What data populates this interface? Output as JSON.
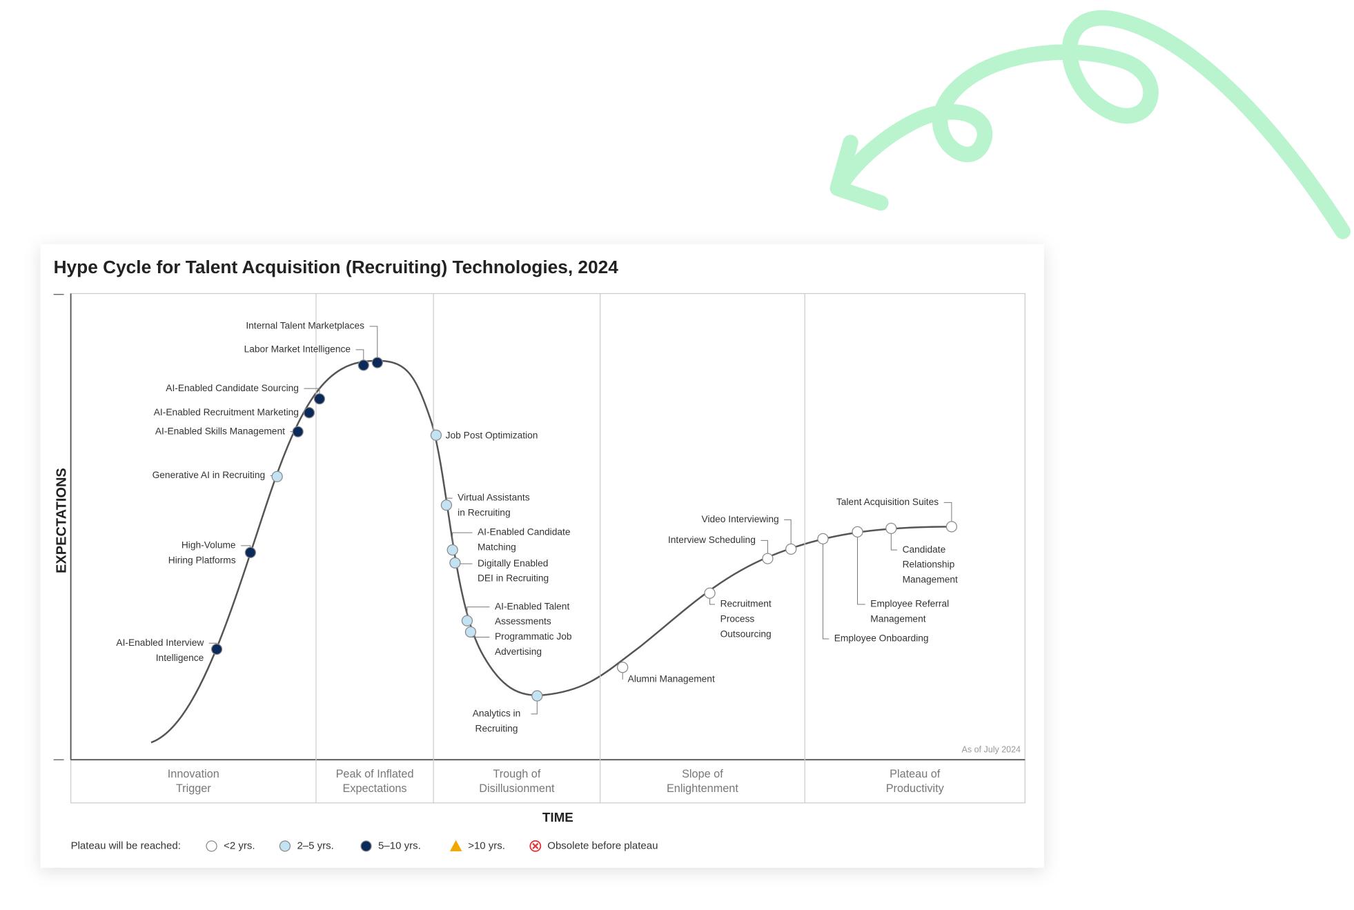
{
  "title": "Hype Cycle for Talent Acquisition (Recruiting) Technologies, 2024",
  "y_axis_label": "EXPECTATIONS",
  "x_axis_label": "TIME",
  "as_of": "As of July 2024",
  "phases": [
    [
      "Innovation",
      "Trigger"
    ],
    [
      "Peak of Inflated",
      "Expectations"
    ],
    [
      "Trough of",
      "Disillusionment"
    ],
    [
      "Slope of",
      "Enlightenment"
    ],
    [
      "Plateau of",
      "Productivity"
    ]
  ],
  "legend": {
    "title": "Plateau will be reached:",
    "items": [
      {
        "label": "<2 yrs.",
        "color": "#ffffff",
        "marker": "circle"
      },
      {
        "label": "2–5 yrs.",
        "color": "#c3e2f2",
        "marker": "circle"
      },
      {
        "label": "5–10 yrs.",
        "color": "#0b2a5a",
        "marker": "circle"
      },
      {
        "label": ">10 yrs.",
        "color": "#f0a800",
        "marker": "triangle"
      },
      {
        "label": "Obsolete before plateau",
        "color": "#e0383b",
        "marker": "cross"
      }
    ]
  },
  "technologies": [
    {
      "label": [
        "AI-Enabled Interview",
        "Intelligence"
      ],
      "plateau": 2
    },
    {
      "label": [
        "High-Volume",
        "Hiring Platforms"
      ],
      "plateau": 2
    },
    {
      "label": [
        "Generative AI in Recruiting"
      ],
      "plateau": 1
    },
    {
      "label": [
        "AI-Enabled Skills Management"
      ],
      "plateau": 2
    },
    {
      "label": [
        "AI-Enabled Recruitment Marketing"
      ],
      "plateau": 2
    },
    {
      "label": [
        "AI-Enabled Candidate Sourcing"
      ],
      "plateau": 2
    },
    {
      "label": [
        "Labor Market Intelligence"
      ],
      "plateau": 2
    },
    {
      "label": [
        "Internal Talent Marketplaces"
      ],
      "plateau": 2
    },
    {
      "label": [
        "Job Post Optimization"
      ],
      "plateau": 1
    },
    {
      "label": [
        "Virtual Assistants",
        "in Recruiting"
      ],
      "plateau": 1
    },
    {
      "label": [
        "AI-Enabled Candidate",
        "Matching"
      ],
      "plateau": 1
    },
    {
      "label": [
        "Digitally Enabled",
        "DEI in Recruiting"
      ],
      "plateau": 1
    },
    {
      "label": [
        "AI-Enabled Talent",
        "Assessments"
      ],
      "plateau": 1
    },
    {
      "label": [
        "Programmatic Job",
        "Advertising"
      ],
      "plateau": 1
    },
    {
      "label": [
        "Analytics in",
        "Recruiting"
      ],
      "plateau": 1
    },
    {
      "label": [
        "Alumni Management"
      ],
      "plateau": 0
    },
    {
      "label": [
        "Recruitment",
        "Process",
        "Outsourcing"
      ],
      "plateau": 0
    },
    {
      "label": [
        "Interview Scheduling"
      ],
      "plateau": 0
    },
    {
      "label": [
        "Video Interviewing"
      ],
      "plateau": 0
    },
    {
      "label": [
        "Employee Onboarding"
      ],
      "plateau": 0
    },
    {
      "label": [
        "Employee Referral",
        "Management"
      ],
      "plateau": 0
    },
    {
      "label": [
        "Candidate",
        "Relationship",
        "Management"
      ],
      "plateau": 0
    },
    {
      "label": [
        "Talent Acquisition Suites"
      ],
      "plateau": 0
    }
  ]
}
